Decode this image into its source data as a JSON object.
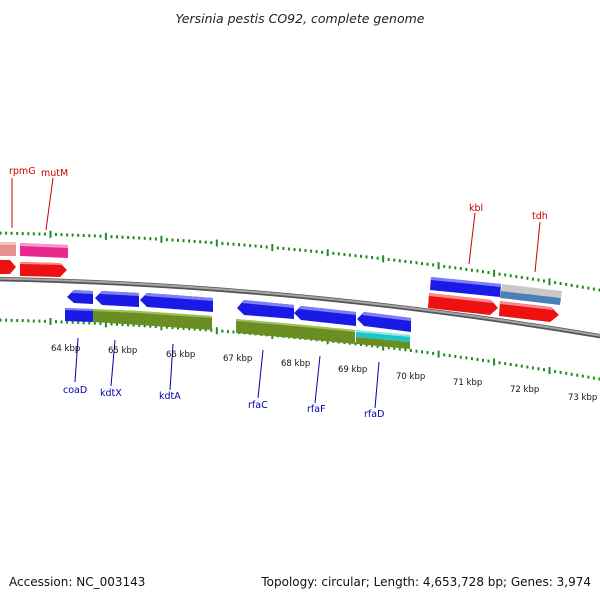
{
  "title": "Yersinia pestis CO92, complete genome",
  "footer": {
    "accession": "Accession: NC_003143",
    "summary": "Topology: circular; Length: 4,653,728 bp; Genes: 3,974"
  },
  "scale_labels": [
    "64 kbp",
    "65 kbp",
    "66 kbp",
    "67 kbp",
    "68 kbp",
    "69 kbp",
    "70 kbp",
    "71 kbp",
    "72 kbp",
    "73 kbp"
  ],
  "gene_labels": {
    "rpmG": "rpmG",
    "mutM": "mutM",
    "kbl": "kbl",
    "tdh": "tdh",
    "coaD": "coaD",
    "kdtX": "kdtX",
    "kdtA": "kdtA",
    "rfaC": "rfaC",
    "rfaF": "rfaF",
    "rfaD": "rfaD"
  },
  "colors": {
    "backbone": "#8a8a8a",
    "tick": "#1f8a1f",
    "forward_label": "#cc0000",
    "reverse_label": "#0000aa",
    "cds_blue": "#1a1ae6",
    "cds_red": "#ee1111",
    "olive": "#6b8e23",
    "pink": "#e8288c",
    "salmon": "#e89090",
    "grey": "#c8c8c8",
    "steel": "#4a7fb8",
    "cyan": "#16c8c8"
  }
}
